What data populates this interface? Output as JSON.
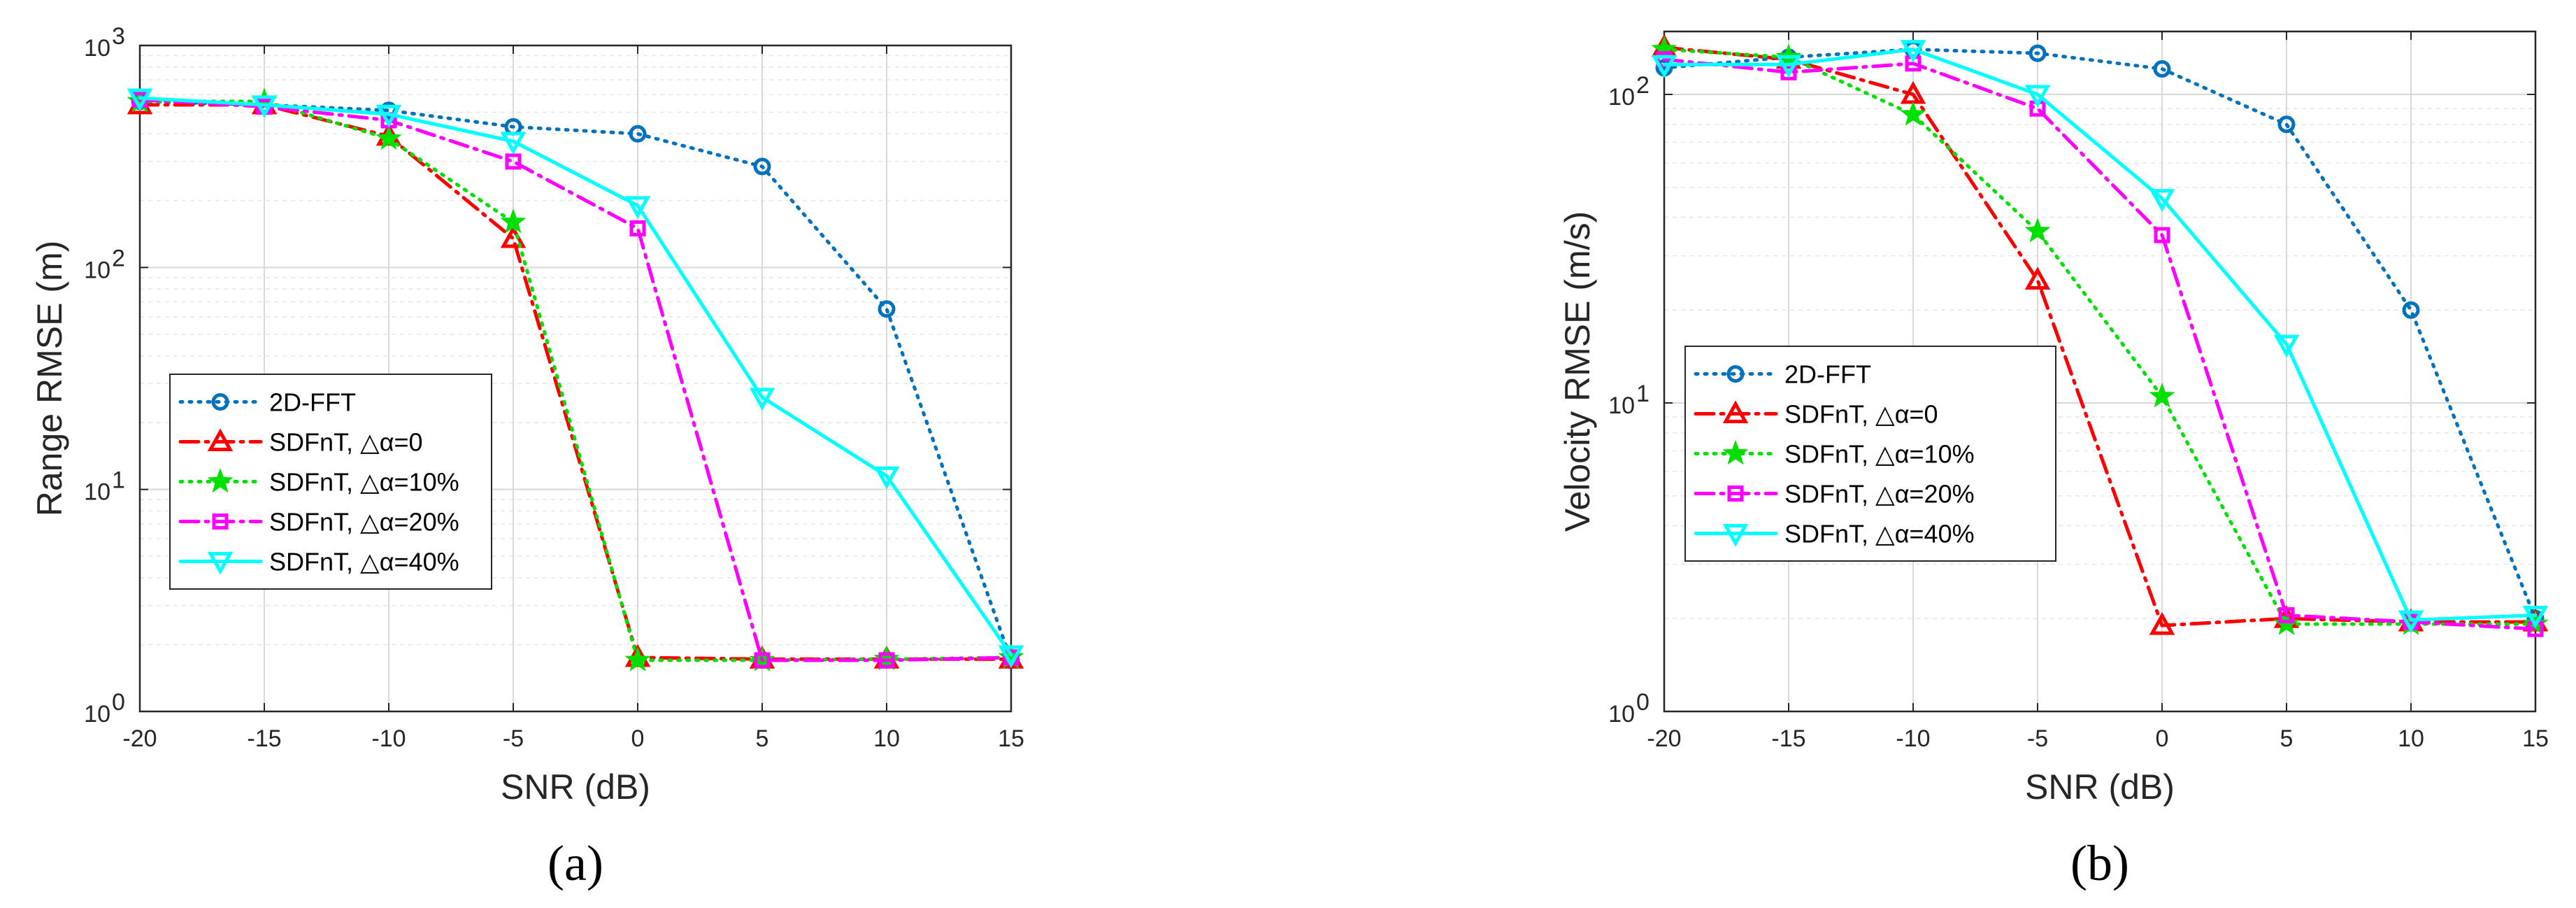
{
  "colors": {
    "fft": "#0072BD",
    "a0": "#FF0000",
    "a10": "#00E000",
    "a20": "#FF00FF",
    "a40": "#00FFFF",
    "axis": "#262626",
    "grid": "#E6E6E6"
  },
  "chart_data": [
    {
      "type": "line",
      "caption": "(a)",
      "xlabel": "SNR (dB)",
      "ylabel": "Range RMSE (m)",
      "yscale": "log",
      "xlim": [
        -20,
        15
      ],
      "ylim": [
        1,
        1000
      ],
      "xticks": [
        "-20",
        "-15",
        "-10",
        "-5",
        "0",
        "5",
        "10",
        "15"
      ],
      "yticks": [
        {
          "base": "10",
          "exp": "0"
        },
        {
          "base": "10",
          "exp": "1"
        },
        {
          "base": "10",
          "exp": "2"
        },
        {
          "base": "10",
          "exp": "3"
        }
      ],
      "grid": true,
      "legend_position": "lower-left",
      "x": [
        -20,
        -15,
        -10,
        -5,
        0,
        5,
        10,
        15
      ],
      "series": [
        {
          "name": "2D-FFT",
          "style": "dotted",
          "marker": "circle",
          "color_key": "fft",
          "values": [
            560,
            540,
            510,
            430,
            400,
            285,
            65,
            1.7
          ]
        },
        {
          "name": "SDFnT, △α=0",
          "style": "dashdot",
          "marker": "triangle-up",
          "color_key": "a0",
          "values": [
            540,
            540,
            390,
            135,
            1.75,
            1.72,
            1.72,
            1.72
          ]
        },
        {
          "name": "SDFnT, △α=10%",
          "style": "dotted",
          "marker": "star",
          "color_key": "a10",
          "values": [
            560,
            560,
            380,
            160,
            1.7,
            1.7,
            1.72,
            1.75
          ]
        },
        {
          "name": "SDFnT, △α=20%",
          "style": "dashdot",
          "marker": "square",
          "color_key": "a20",
          "values": [
            570,
            530,
            460,
            300,
            150,
            1.7,
            1.7,
            1.75
          ]
        },
        {
          "name": "SDFnT, △α=40%",
          "style": "solid",
          "marker": "triangle-down",
          "color_key": "a40",
          "values": [
            580,
            540,
            490,
            370,
            190,
            26,
            11.5,
            1.8
          ]
        }
      ]
    },
    {
      "type": "line",
      "caption": "(b)",
      "xlabel": "SNR (dB)",
      "ylabel": "Velocity RMSE (m/s)",
      "yscale": "log",
      "xlim": [
        -20,
        15
      ],
      "ylim": [
        1,
        160
      ],
      "xticks": [
        "-20",
        "-15",
        "-10",
        "-5",
        "0",
        "5",
        "10",
        "15"
      ],
      "yticks": [
        {
          "base": "10",
          "exp": "0"
        },
        {
          "base": "10",
          "exp": "1"
        },
        {
          "base": "10",
          "exp": "2"
        }
      ],
      "grid": true,
      "legend_position": "middle-left",
      "x": [
        -20,
        -15,
        -10,
        -5,
        0,
        5,
        10,
        15
      ],
      "series": [
        {
          "name": "2D-FFT",
          "style": "dotted",
          "marker": "circle",
          "color_key": "fft",
          "values": [
            122,
            132,
            140,
            136,
            121,
            80,
            20,
            2.0
          ]
        },
        {
          "name": "SDFnT, △α=0",
          "style": "dashdot",
          "marker": "triangle-up",
          "color_key": "a0",
          "values": [
            142,
            130,
            100,
            25,
            1.9,
            2.0,
            1.95,
            1.95
          ]
        },
        {
          "name": "SDFnT, △α=10%",
          "style": "dotted",
          "marker": "star",
          "color_key": "a10",
          "values": [
            140,
            132,
            86,
            36,
            10.5,
            1.92,
            1.92,
            1.92
          ]
        },
        {
          "name": "SDFnT, △α=20%",
          "style": "dashdot",
          "marker": "square",
          "color_key": "a20",
          "values": [
            130,
            118,
            126,
            90,
            35,
            2.05,
            1.95,
            1.85
          ]
        },
        {
          "name": "SDFnT, △α=40%",
          "style": "solid",
          "marker": "triangle-down",
          "color_key": "a40",
          "values": [
            125,
            125,
            140,
            100,
            46,
            15.5,
            1.98,
            2.05
          ]
        }
      ]
    }
  ]
}
